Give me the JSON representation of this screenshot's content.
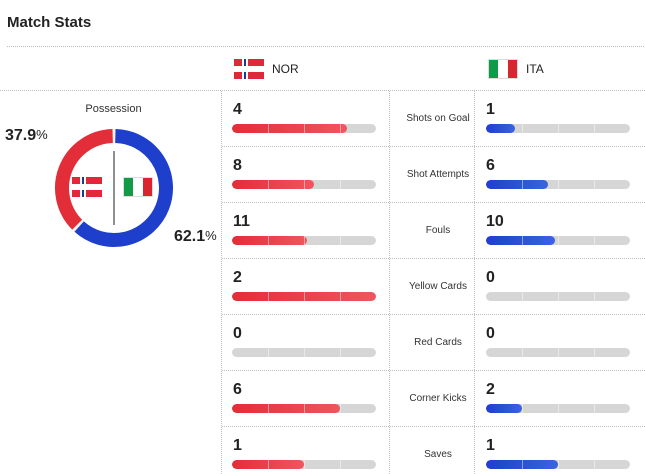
{
  "header": {
    "title": "Match Stats"
  },
  "teams": {
    "home": {
      "code": "NOR",
      "flag": "norway-flag-icon",
      "color": "#e32d38"
    },
    "away": {
      "code": "ITA",
      "flag": "italy-flag-icon",
      "color": "#1e3fcb"
    }
  },
  "possession": {
    "label": "Possession",
    "home_value": "37.9",
    "away_value": "62.1",
    "unit": "%"
  },
  "stats": [
    {
      "label": "Shots on Goal",
      "home": 4,
      "away": 1
    },
    {
      "label": "Shot Attempts",
      "home": 8,
      "away": 6
    },
    {
      "label": "Fouls",
      "home": 11,
      "away": 10
    },
    {
      "label": "Yellow Cards",
      "home": 2,
      "away": 0
    },
    {
      "label": "Red Cards",
      "home": 0,
      "away": 0
    },
    {
      "label": "Corner Kicks",
      "home": 6,
      "away": 2
    },
    {
      "label": "Saves",
      "home": 1,
      "away": 1
    }
  ]
}
